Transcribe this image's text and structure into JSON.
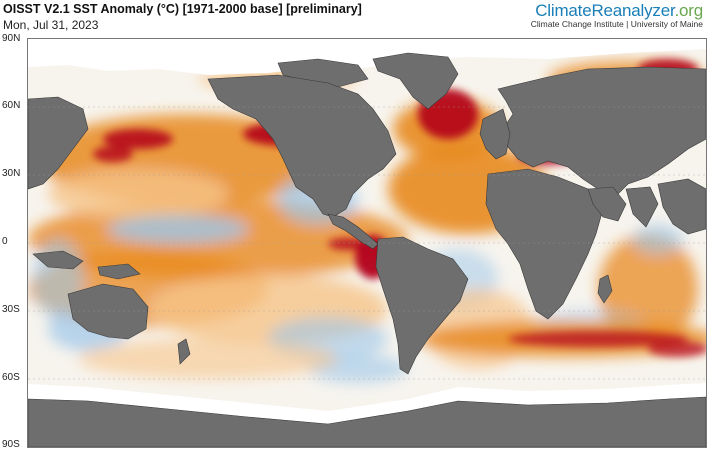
{
  "header": {
    "title": "OISST V2.1 SST Anomaly (°C) [1971-2000 base] [preliminary]",
    "date": "Mon, Jul 31, 2023"
  },
  "brand": {
    "logo_main": "ClimateReanalyzer",
    "logo_suffix": ".org",
    "subtitle": "Climate Change Institute | University of Maine"
  },
  "map": {
    "latitude_labels": [
      "90N",
      "60N",
      "30N",
      "0",
      "30S",
      "60S",
      "90S"
    ],
    "colors": {
      "land": "#6e6e6e",
      "sea_ice": "#ffffff",
      "warm_strong": "#b3001b",
      "warm": "#e8891f",
      "warm_light": "#f6c48a",
      "neutral": "#f7f4ee",
      "cool": "#9cc6ea",
      "cool_strong": "#4d8ed6"
    }
  }
}
